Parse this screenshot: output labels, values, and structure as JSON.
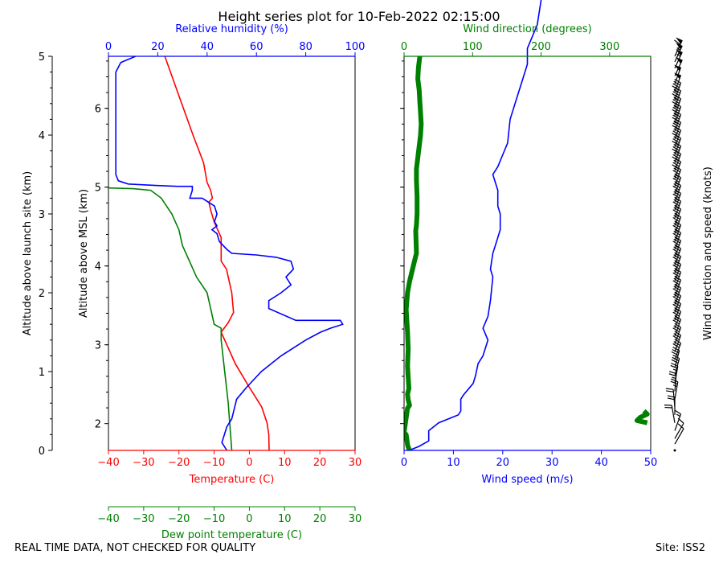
{
  "title": "Height series plot for 10-Feb-2022 02:15:00",
  "footer": {
    "quality_note": "REAL TIME DATA, NOT CHECKED FOR QUALITY",
    "site": "Site: ISS2"
  },
  "colors": {
    "temperature": "#ff0000",
    "dewpoint": "#008000",
    "humidity": "#0000ff",
    "wind_speed": "#0000ff",
    "wind_direction": "#008000",
    "barbs": "#000000"
  },
  "chart_data": [
    {
      "type": "line",
      "panel": "thermodynamic",
      "left_axis": {
        "label": "Altitude above launch site (km)",
        "ylim": [
          0,
          5
        ],
        "ticks": [
          "0",
          "1",
          "2",
          "3",
          "4",
          "5"
        ]
      },
      "msl_axis": {
        "label": "Altitude above MSL (km)",
        "ticks": [
          "2",
          "3",
          "4",
          "5",
          "6"
        ],
        "tick_values_agl": [
          0.34,
          1.34,
          2.34,
          3.34,
          4.34
        ]
      },
      "x_axes": [
        {
          "label": "Temperature (C)",
          "position": "bottom",
          "xlim": [
            -40,
            30
          ],
          "ticks": [
            "−40",
            "−30",
            "−20",
            "−10",
            "0",
            "10",
            "20",
            "30"
          ]
        },
        {
          "label": "Relative humidity (%)",
          "position": "top",
          "xlim": [
            0,
            100
          ],
          "ticks": [
            "0",
            "20",
            "40",
            "60",
            "80",
            "100"
          ]
        },
        {
          "label": "Dew point temperature (C)",
          "position": "bottom-offset",
          "xlim": [
            -40,
            30
          ],
          "ticks": [
            "−40",
            "−30",
            "−20",
            "−10",
            "0",
            "10",
            "20",
            "30"
          ]
        }
      ],
      "series": [
        {
          "axis": "Temperature (C)",
          "color": "#ff0000",
          "points": [
            [
              5.6,
              0
            ],
            [
              5.5,
              0.2
            ],
            [
              5,
              0.35
            ],
            [
              3.5,
              0.55
            ],
            [
              0,
              0.8
            ],
            [
              -4,
              1.1
            ],
            [
              -8,
              1.5
            ],
            [
              -6,
              1.62
            ],
            [
              -4.5,
              1.75
            ],
            [
              -5,
              2
            ],
            [
              -6.5,
              2.3
            ],
            [
              -8,
              2.4
            ],
            [
              -8,
              2.7
            ],
            [
              -10,
              2.9
            ],
            [
              -11,
              3.05
            ],
            [
              -11.5,
              3.15
            ],
            [
              -10.5,
              3.2
            ],
            [
              -11,
              3.3
            ],
            [
              -12,
              3.4
            ],
            [
              -13,
              3.65
            ],
            [
              -16,
              4
            ],
            [
              -20,
              4.5
            ],
            [
              -24,
              5
            ]
          ]
        },
        {
          "axis": "Dew point temperature (C)",
          "color": "#008000",
          "points": [
            [
              -5,
              0
            ],
            [
              -5.5,
              0.3
            ],
            [
              -6,
              0.6
            ],
            [
              -7,
              1
            ],
            [
              -8,
              1.4
            ],
            [
              -8,
              1.55
            ],
            [
              -10,
              1.6
            ],
            [
              -11,
              1.8
            ],
            [
              -12,
              2
            ],
            [
              -15,
              2.2
            ],
            [
              -17,
              2.4
            ],
            [
              -19,
              2.6
            ],
            [
              -20,
              2.8
            ],
            [
              -22,
              3
            ],
            [
              -25,
              3.2
            ],
            [
              -28,
              3.3
            ],
            [
              -33,
              3.32
            ],
            [
              -40,
              3.33
            ]
          ]
        },
        {
          "axis": "Relative humidity (%)",
          "color": "#0000ff",
          "points": [
            [
              48,
              0
            ],
            [
              46,
              0.1
            ],
            [
              47,
              0.2
            ],
            [
              48,
              0.3
            ],
            [
              50,
              0.4
            ],
            [
              52,
              0.65
            ],
            [
              56,
              0.8
            ],
            [
              62,
              1
            ],
            [
              70,
              1.2
            ],
            [
              80,
              1.4
            ],
            [
              86,
              1.5
            ],
            [
              90,
              1.55
            ],
            [
              95,
              1.6
            ],
            [
              94,
              1.65
            ],
            [
              76,
              1.65
            ],
            [
              65,
              1.8
            ],
            [
              65,
              1.9
            ],
            [
              70,
              2
            ],
            [
              74,
              2.1
            ],
            [
              72,
              2.2
            ],
            [
              75,
              2.3
            ],
            [
              74,
              2.4
            ],
            [
              68,
              2.45
            ],
            [
              60,
              2.48
            ],
            [
              50,
              2.5
            ],
            [
              48,
              2.55
            ],
            [
              45,
              2.65
            ],
            [
              44,
              2.75
            ],
            [
              42,
              2.8
            ],
            [
              44,
              2.85
            ],
            [
              43,
              2.9
            ],
            [
              44,
              3
            ],
            [
              43,
              3.1
            ],
            [
              38,
              3.2
            ],
            [
              33,
              3.2
            ],
            [
              34,
              3.3
            ],
            [
              34,
              3.35
            ],
            [
              28,
              3.35
            ],
            [
              20,
              3.36
            ],
            [
              8,
              3.38
            ],
            [
              4,
              3.42
            ],
            [
              3,
              3.5
            ],
            [
              3,
              4
            ],
            [
              3,
              4.5
            ],
            [
              3,
              4.8
            ],
            [
              5,
              4.92
            ],
            [
              11,
              5
            ]
          ]
        }
      ]
    },
    {
      "type": "line",
      "panel": "wind",
      "x_axes": [
        {
          "label": "Wind speed (m/s)",
          "position": "bottom",
          "xlim": [
            0,
            50
          ],
          "ticks": [
            "0",
            "10",
            "20",
            "30",
            "40",
            "50"
          ]
        },
        {
          "label": "Wind direction (degrees)",
          "position": "top",
          "xlim": [
            0,
            360
          ],
          "ticks": [
            "0",
            "100",
            "200",
            "300"
          ]
        }
      ],
      "series": [
        {
          "axis": "Wind speed (m/s)",
          "color": "#0000ff",
          "points": [
            [
              1,
              0
            ],
            [
              3,
              0.05
            ],
            [
              5,
              0.12
            ],
            [
              5,
              0.25
            ],
            [
              7,
              0.35
            ],
            [
              11,
              0.45
            ],
            [
              11.5,
              0.5
            ],
            [
              11.5,
              0.65
            ],
            [
              12,
              0.7
            ],
            [
              14,
              0.85
            ],
            [
              14.5,
              0.95
            ],
            [
              15,
              1.1
            ],
            [
              16,
              1.2
            ],
            [
              16.5,
              1.3
            ],
            [
              17,
              1.4
            ],
            [
              16,
              1.55
            ],
            [
              17,
              1.7
            ],
            [
              17.5,
              1.9
            ],
            [
              18,
              2.2
            ],
            [
              17.5,
              2.3
            ],
            [
              18,
              2.5
            ],
            [
              19,
              2.7
            ],
            [
              19.5,
              2.8
            ],
            [
              19.5,
              3
            ],
            [
              19,
              3.1
            ],
            [
              19,
              3.3
            ],
            [
              18,
              3.5
            ],
            [
              19,
              3.6
            ],
            [
              20,
              3.75
            ],
            [
              21,
              3.9
            ],
            [
              21.5,
              4.2
            ],
            [
              23,
              4.5
            ],
            [
              24,
              4.7
            ],
            [
              25,
              4.9
            ],
            [
              25,
              5.1
            ],
            [
              27,
              5.4
            ],
            [
              28,
              5.8
            ],
            [
              29,
              6
            ],
            [
              31,
              6.3
            ]
          ]
        },
        {
          "axis": "Wind direction (degrees)",
          "color": "#008000",
          "points": [
            [
              8,
              0
            ],
            [
              6,
              0.06
            ],
            [
              5,
              0.1
            ],
            [
              4,
              0.2
            ],
            [
              3,
              0.28
            ],
            [
              0,
              0.32
            ],
            [
              5,
              0.75
            ],
            [
              8,
              0.8
            ],
            [
              6,
              0.9
            ],
            [
              5,
              1
            ],
            [
              7,
              1.1
            ],
            [
              6,
              1.3
            ],
            [
              5,
              1.5
            ],
            [
              6,
              1.8
            ],
            [
              5,
              2.1
            ],
            [
              3,
              2.5
            ],
            [
              5,
              2.8
            ],
            [
              8,
              3
            ],
            [
              10,
              3.1
            ],
            [
              12,
              3.2
            ],
            [
              16,
              3.4
            ],
            [
              18,
              3.5
            ],
            [
              17,
              3.9
            ],
            [
              18,
              4
            ],
            [
              19,
              4.2
            ],
            [
              19,
              4.5
            ],
            [
              18,
              4.8
            ],
            [
              18,
              5
            ],
            [
              20,
              5.2
            ],
            [
              22,
              5.4
            ],
            [
              24,
              5.6
            ],
            [
              25,
              5.8
            ],
            [
              24,
              6
            ],
            [
              23,
              6.2
            ],
            [
              22,
              6.4
            ],
            [
              20,
              6.6
            ],
            [
              21,
              6.8
            ],
            [
              23,
              7
            ]
          ],
          "segments_note": ""
        }
      ],
      "direction_wrap": {
        "values_deg": [
          [
            355,
            0.35
          ],
          [
            340,
            0.38
          ],
          [
            345,
            0.42
          ],
          [
            355,
            0.46
          ],
          [
            350,
            0.5
          ]
        ]
      }
    },
    {
      "type": "barbs",
      "label": "Wind direction and speed (knots)",
      "barbs": [
        {
          "alt": 0,
          "dir": 90,
          "spd": 2
        },
        {
          "alt": 0.08,
          "dir": 30,
          "spd": 10
        },
        {
          "alt": 0.15,
          "dir": 30,
          "spd": 10
        },
        {
          "alt": 0.25,
          "dir": 20,
          "spd": 15
        },
        {
          "alt": 0.35,
          "dir": 350,
          "spd": 20
        },
        {
          "alt": 0.45,
          "dir": 360,
          "spd": 20
        },
        {
          "alt": 0.55,
          "dir": 355,
          "spd": 20
        },
        {
          "alt": 0.65,
          "dir": 10,
          "spd": 25
        },
        {
          "alt": 0.75,
          "dir": 5,
          "spd": 25
        },
        {
          "alt": 0.85,
          "dir": 10,
          "spd": 25
        },
        {
          "alt": 0.95,
          "dir": 15,
          "spd": 30
        },
        {
          "alt": 1.05,
          "dir": 15,
          "spd": 30
        },
        {
          "alt": 1.15,
          "dir": 20,
          "spd": 30
        },
        {
          "alt": 1.25,
          "dir": 20,
          "spd": 30
        },
        {
          "alt": 1.35,
          "dir": 20,
          "spd": 30
        },
        {
          "alt": 1.45,
          "dir": 20,
          "spd": 30
        },
        {
          "alt": 1.55,
          "dir": 20,
          "spd": 35
        },
        {
          "alt": 1.65,
          "dir": 20,
          "spd": 35
        },
        {
          "alt": 1.75,
          "dir": 20,
          "spd": 35
        },
        {
          "alt": 1.85,
          "dir": 20,
          "spd": 35
        },
        {
          "alt": 1.95,
          "dir": 20,
          "spd": 35
        },
        {
          "alt": 2.05,
          "dir": 20,
          "spd": 35
        },
        {
          "alt": 2.15,
          "dir": 20,
          "spd": 35
        },
        {
          "alt": 2.25,
          "dir": 20,
          "spd": 35
        },
        {
          "alt": 2.35,
          "dir": 20,
          "spd": 35
        },
        {
          "alt": 2.45,
          "dir": 20,
          "spd": 35
        },
        {
          "alt": 2.55,
          "dir": 20,
          "spd": 35
        },
        {
          "alt": 2.65,
          "dir": 20,
          "spd": 35
        },
        {
          "alt": 2.75,
          "dir": 20,
          "spd": 35
        },
        {
          "alt": 2.85,
          "dir": 20,
          "spd": 35
        },
        {
          "alt": 2.95,
          "dir": 20,
          "spd": 35
        },
        {
          "alt": 3.05,
          "dir": 20,
          "spd": 35
        },
        {
          "alt": 3.15,
          "dir": 20,
          "spd": 35
        },
        {
          "alt": 3.25,
          "dir": 20,
          "spd": 35
        },
        {
          "alt": 3.35,
          "dir": 20,
          "spd": 35
        },
        {
          "alt": 3.45,
          "dir": 20,
          "spd": 40
        },
        {
          "alt": 3.55,
          "dir": 20,
          "spd": 40
        },
        {
          "alt": 3.65,
          "dir": 20,
          "spd": 40
        },
        {
          "alt": 3.75,
          "dir": 20,
          "spd": 40
        },
        {
          "alt": 3.85,
          "dir": 20,
          "spd": 40
        },
        {
          "alt": 3.95,
          "dir": 20,
          "spd": 40
        },
        {
          "alt": 4.05,
          "dir": 20,
          "spd": 45
        },
        {
          "alt": 4.15,
          "dir": 20,
          "spd": 45
        },
        {
          "alt": 4.25,
          "dir": 20,
          "spd": 45
        },
        {
          "alt": 4.35,
          "dir": 20,
          "spd": 45
        },
        {
          "alt": 4.45,
          "dir": 20,
          "spd": 45
        },
        {
          "alt": 4.55,
          "dir": 20,
          "spd": 50
        },
        {
          "alt": 4.65,
          "dir": 20,
          "spd": 50
        },
        {
          "alt": 4.75,
          "dir": 25,
          "spd": 50
        },
        {
          "alt": 4.85,
          "dir": 25,
          "spd": 55
        },
        {
          "alt": 4.93,
          "dir": 25,
          "spd": 55
        },
        {
          "alt": 5.0,
          "dir": 25,
          "spd": 60
        }
      ]
    }
  ]
}
